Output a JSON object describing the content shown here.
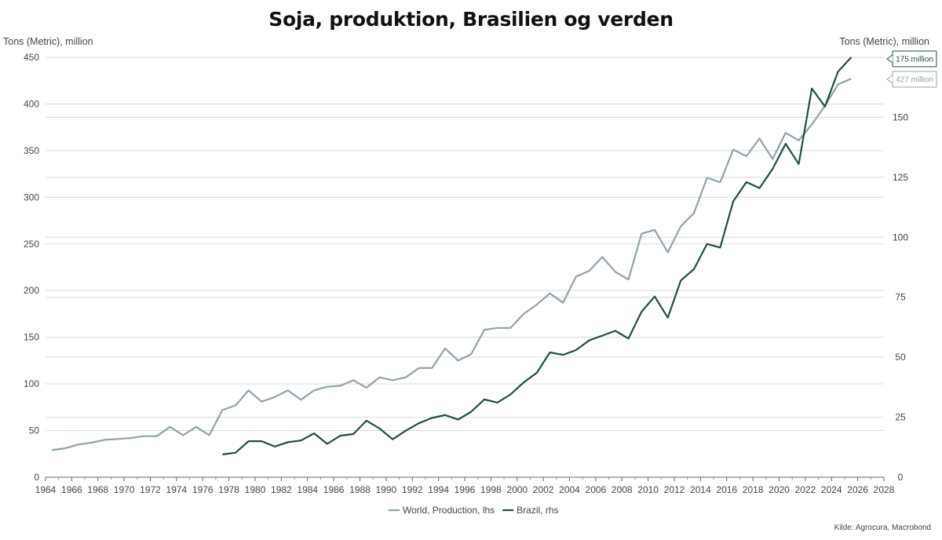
{
  "chart_data": {
    "type": "line",
    "title": "Soja, produktion, Brasilien og verden",
    "ylabel_left": "Tons (Metric), million",
    "ylabel_right": "Tons (Metric), million",
    "source": "Kilde: Agrocura, Macrobond",
    "xlim": [
      1964,
      2028
    ],
    "ylim_left": [
      0,
      450
    ],
    "ylim_right": [
      0,
      175
    ],
    "x_ticks": [
      1964,
      1966,
      1968,
      1970,
      1972,
      1974,
      1976,
      1978,
      1980,
      1982,
      1984,
      1986,
      1988,
      1990,
      1992,
      1994,
      1996,
      1998,
      2000,
      2002,
      2004,
      2006,
      2008,
      2010,
      2012,
      2014,
      2016,
      2018,
      2020,
      2022,
      2024,
      2026,
      2028
    ],
    "y_ticks_left": [
      0,
      50,
      100,
      150,
      200,
      250,
      300,
      350,
      400,
      450
    ],
    "y_ticks_right": [
      0,
      25,
      50,
      75,
      100,
      125,
      150
    ],
    "grid": "horizontal",
    "legend_position": "bottom",
    "colors": {
      "world": "#8fa3ae",
      "brazil": "#1f4f3f"
    },
    "series": [
      {
        "name": "World, Production, lhs",
        "axis": "left",
        "end_label": "427 million",
        "x": [
          1964.5,
          1965.5,
          1966.5,
          1967.5,
          1968.5,
          1969.5,
          1970.5,
          1971.5,
          1972.5,
          1973.5,
          1974.5,
          1975.5,
          1976.5,
          1977.5,
          1978.5,
          1979.5,
          1980.5,
          1981.5,
          1982.5,
          1983.5,
          1984.5,
          1985.5,
          1986.5,
          1987.5,
          1988.5,
          1989.5,
          1990.5,
          1991.5,
          1992.5,
          1993.5,
          1994.5,
          1995.5,
          1996.5,
          1997.5,
          1998.5,
          1999.5,
          2000.5,
          2001.5,
          2002.5,
          2003.5,
          2004.5,
          2005.5,
          2006.5,
          2007.5,
          2008.5,
          2009.5,
          2010.5,
          2011.5,
          2012.5,
          2013.5,
          2014.5,
          2015.5,
          2016.5,
          2017.5,
          2018.5,
          2019.5,
          2020.5,
          2021.5,
          2022.5,
          2023.5,
          2024.5,
          2025.5
        ],
        "values": [
          29,
          31,
          35,
          37,
          40,
          41,
          42,
          44,
          44,
          54,
          45,
          54,
          45,
          72,
          77,
          93,
          81,
          86,
          93,
          83,
          93,
          97,
          98,
          104,
          96,
          107,
          104,
          107,
          117,
          117,
          138,
          125,
          132,
          158,
          160,
          160,
          175,
          185,
          197,
          187,
          215,
          221,
          236,
          220,
          212,
          261,
          265,
          241,
          269,
          283,
          321,
          316,
          351,
          344,
          363,
          341,
          369,
          361,
          378,
          398,
          421,
          427
        ]
      },
      {
        "name": "Brazil, rhs",
        "axis": "right",
        "end_label": "175 million",
        "x": [
          1977.5,
          1978.5,
          1979.5,
          1980.5,
          1981.5,
          1982.5,
          1983.5,
          1984.5,
          1985.5,
          1986.5,
          1987.5,
          1988.5,
          1989.5,
          1990.5,
          1991.5,
          1992.5,
          1993.5,
          1994.5,
          1995.5,
          1996.5,
          1997.5,
          1998.5,
          1999.5,
          2000.5,
          2001.5,
          2002.5,
          2003.5,
          2004.5,
          2005.5,
          2006.5,
          2007.5,
          2008.5,
          2009.5,
          2010.5,
          2011.5,
          2012.5,
          2013.5,
          2014.5,
          2015.5,
          2016.5,
          2017.5,
          2018.5,
          2019.5,
          2020.5,
          2021.5,
          2022.5,
          2023.5,
          2024.5,
          2025.5
        ],
        "values": [
          9.5,
          10.2,
          15,
          15,
          12.8,
          14.6,
          15.3,
          18.3,
          13.9,
          17.3,
          18,
          23.6,
          20.3,
          15.8,
          19.4,
          22.5,
          24.7,
          25.9,
          24,
          27.3,
          32.4,
          31.1,
          34.5,
          39.5,
          43.5,
          52,
          51,
          53,
          57,
          59,
          61,
          57.8,
          69,
          75.3,
          66.5,
          82,
          86.7,
          97.2,
          95.7,
          115,
          123,
          120.5,
          128.5,
          139,
          130.5,
          162,
          154.5,
          169,
          175
        ]
      }
    ]
  }
}
